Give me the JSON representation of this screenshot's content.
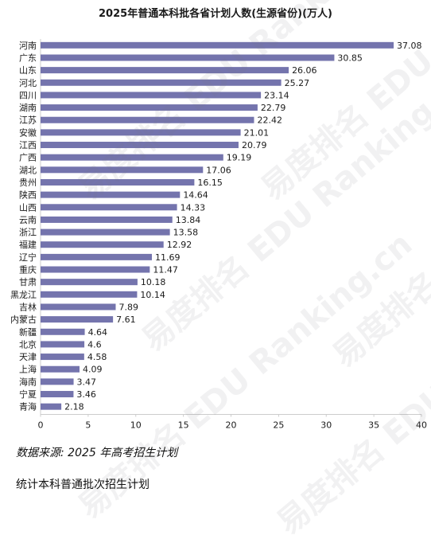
{
  "watermark": "易度排名 EDU Ranking.cn",
  "source_label": "数据来源: 2025 年高考招生计划",
  "footer_label": "统计本科普通批次招生计划",
  "colors": {
    "bar": "#7474ad",
    "axis": "#cccccc",
    "text": "#1a1a1a"
  },
  "chart_data": {
    "type": "bar",
    "orientation": "horizontal",
    "title": "2025年普通本科批各省计划人数(生源省份)(万人)",
    "xlabel": "",
    "ylabel": "",
    "xlim": [
      0,
      40
    ],
    "xticks": [
      0,
      5,
      10,
      15,
      20,
      25,
      30,
      35,
      40
    ],
    "grid": false,
    "categories": [
      "河南",
      "广东",
      "山东",
      "河北",
      "四川",
      "湖南",
      "江苏",
      "安徽",
      "江西",
      "广西",
      "湖北",
      "贵州",
      "陕西",
      "山西",
      "云南",
      "浙江",
      "福建",
      "辽宁",
      "重庆",
      "甘肃",
      "黑龙江",
      "吉林",
      "内蒙古",
      "新疆",
      "北京",
      "天津",
      "上海",
      "海南",
      "宁夏",
      "青海"
    ],
    "values": [
      37.08,
      30.85,
      26.06,
      25.27,
      23.14,
      22.79,
      22.42,
      21.01,
      20.79,
      19.19,
      17.06,
      16.15,
      14.64,
      14.33,
      13.84,
      13.58,
      12.92,
      11.69,
      11.47,
      10.18,
      10.14,
      7.89,
      7.61,
      4.64,
      4.6,
      4.58,
      4.09,
      3.47,
      3.46,
      2.18
    ],
    "value_labels": [
      "37.08",
      "30.85",
      "26.06",
      "25.27",
      "23.14",
      "22.79",
      "22.42",
      "21.01",
      "20.79",
      "19.19",
      "17.06",
      "16.15",
      "14.64",
      "14.33",
      "13.84",
      "13.58",
      "12.92",
      "11.69",
      "11.47",
      "10.18",
      "10.14",
      "7.89",
      "7.61",
      "4.64",
      "4.6",
      "4.58",
      "4.09",
      "3.47",
      "3.46",
      "2.18"
    ]
  }
}
